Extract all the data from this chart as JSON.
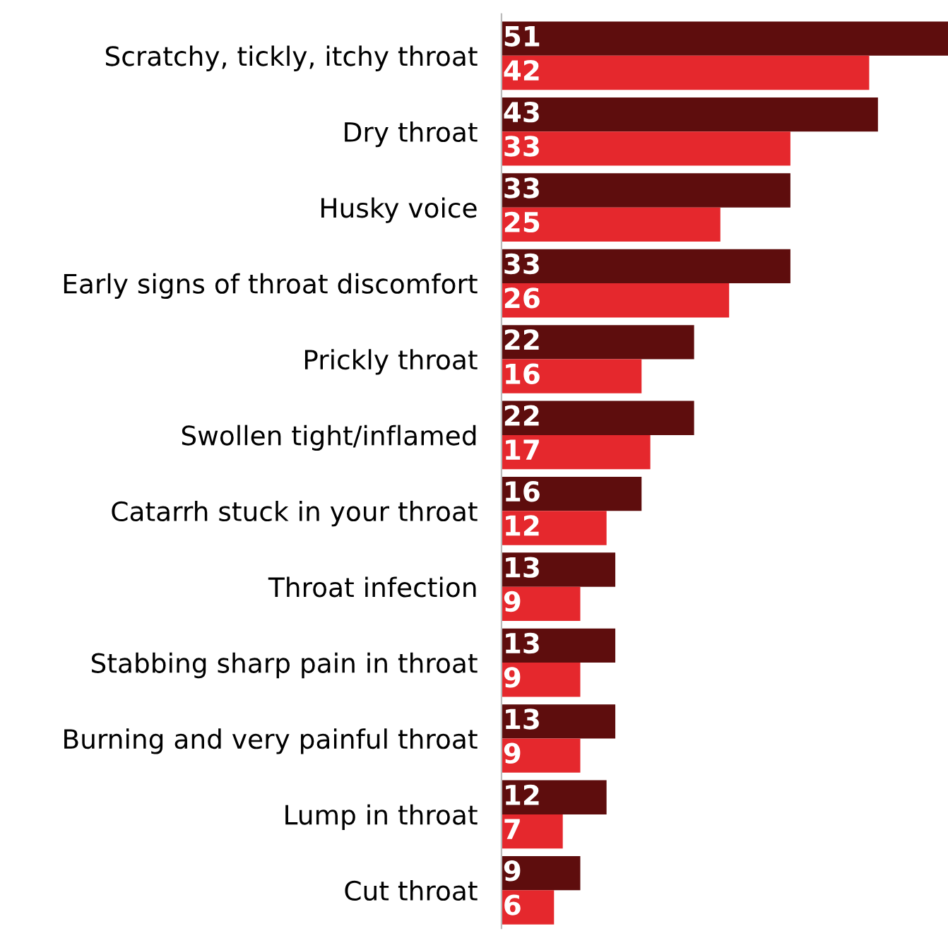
{
  "chart_data": {
    "type": "bar",
    "orientation": "horizontal",
    "categories": [
      "Scratchy, tickly, itchy throat",
      "Dry throat",
      "Husky voice",
      "Early signs of throat discomfort",
      "Prickly throat",
      "Swollen tight/inflamed",
      "Catarrh stuck in your throat",
      "Throat infection",
      "Stabbing sharp pain in throat",
      "Burning and very painful throat",
      "Lump in throat",
      "Cut throat"
    ],
    "series": [
      {
        "color": "#5e0d0d",
        "values": [
          51,
          43,
          33,
          33,
          22,
          22,
          16,
          13,
          13,
          13,
          12,
          9
        ]
      },
      {
        "color": "#e5282d",
        "values": [
          42,
          33,
          25,
          26,
          16,
          17,
          12,
          9,
          9,
          9,
          7,
          6
        ]
      }
    ],
    "xlim": [
      0,
      51
    ],
    "data_labels": true,
    "tick_labels": "y",
    "grid": false,
    "legend": false
  }
}
